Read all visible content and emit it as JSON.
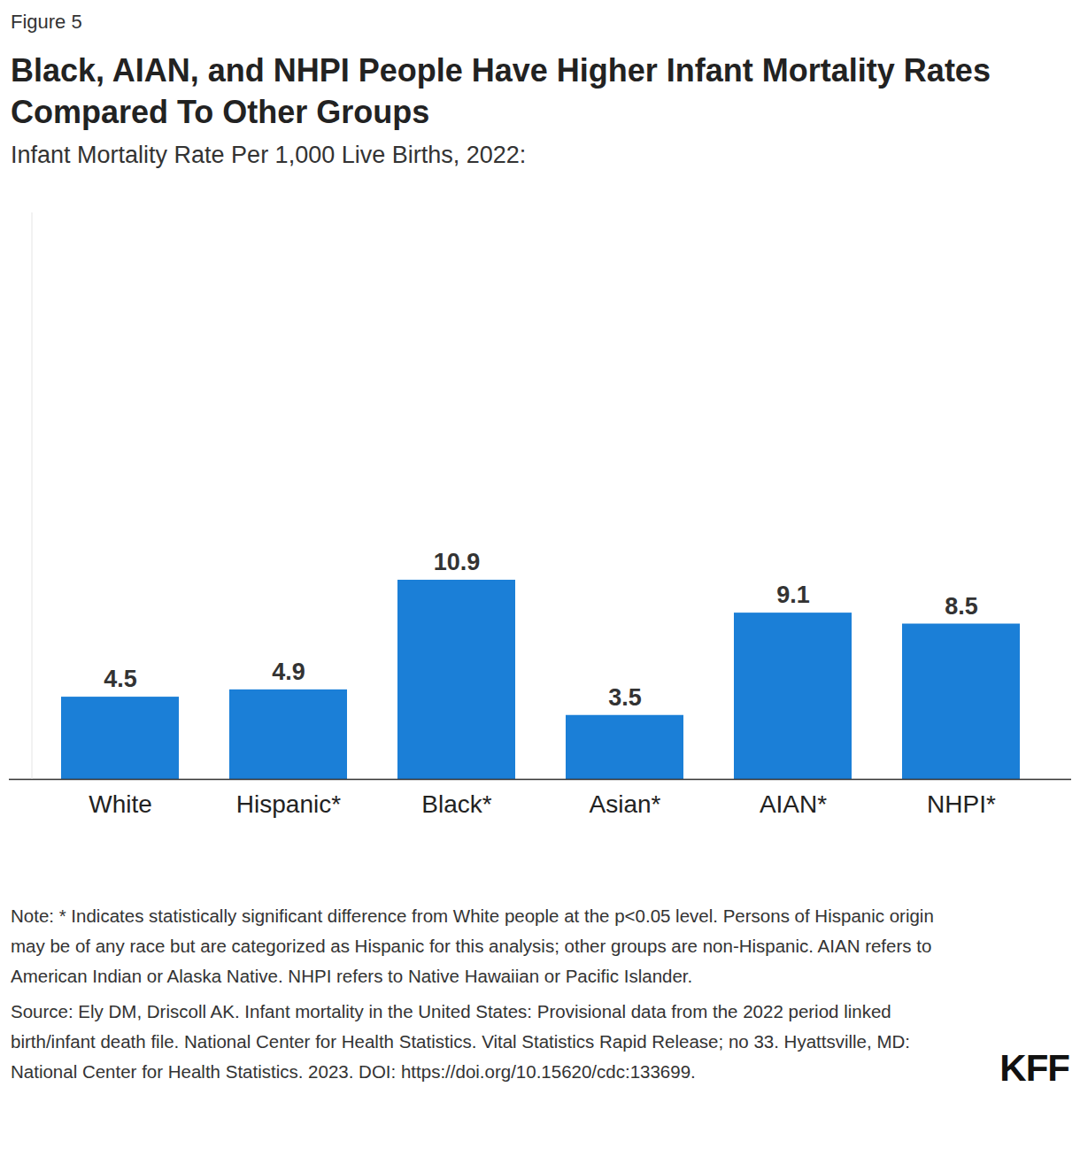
{
  "chart_data": {
    "type": "bar",
    "figure_label": "Figure 5",
    "title": "Black, AIAN, and NHPI People Have Higher Infant Mortality Rates Compared To Other Groups",
    "subtitle": "Infant Mortality Rate Per 1,000 Live Births, 2022:",
    "categories": [
      "White",
      "Hispanic*",
      "Black*",
      "Asian*",
      "AIAN*",
      "NHPI*"
    ],
    "values": [
      4.5,
      4.9,
      10.9,
      3.5,
      9.1,
      8.5
    ],
    "color": "#1b7fd7",
    "ylim": [
      0,
      31
    ],
    "yticks": [],
    "tick_labels": "x",
    "data_labels": true,
    "grid": false,
    "note": "Note: * Indicates statistically significant difference from White people at the p<0.05 level. Persons of Hispanic origin may be of any race but are categorized as Hispanic for this analysis; other groups are non-Hispanic. AIAN refers to American Indian or Alaska Native. NHPI refers to Native Hawaiian or Pacific Islander.",
    "source": "Source: Ely DM, Driscoll AK. Infant mortality in the United States: Provisional data from the 2022 period linked birth/infant death file. National Center for Health Statistics. Vital Statistics Rapid Release; no 33. Hyattsville, MD: National Center for Health Statistics. 2023. DOI: https://doi.org/10.15620/cdc:133699.",
    "logo": "KFF"
  }
}
